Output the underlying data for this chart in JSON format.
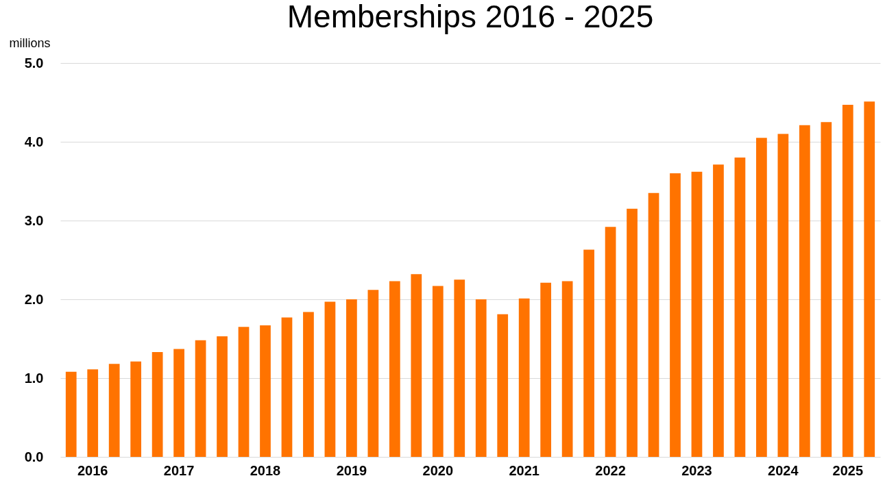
{
  "chart_data": {
    "type": "bar",
    "title": "Memberships 2016 - 2025",
    "ylabel": "millions",
    "categories": [
      null,
      "2016",
      null,
      null,
      null,
      "2017",
      null,
      null,
      null,
      "2018",
      null,
      null,
      null,
      "2019",
      null,
      null,
      null,
      "2020",
      null,
      null,
      null,
      "2021",
      null,
      null,
      null,
      "2022",
      null,
      null,
      null,
      "2023",
      null,
      null,
      null,
      "2024",
      null,
      null,
      "2025",
      null
    ],
    "values": [
      1.08,
      1.11,
      1.18,
      1.21,
      1.33,
      1.37,
      1.48,
      1.53,
      1.65,
      1.67,
      1.77,
      1.84,
      1.97,
      2.0,
      2.12,
      2.23,
      2.32,
      2.17,
      2.25,
      2.0,
      1.81,
      2.01,
      2.21,
      2.23,
      2.63,
      2.92,
      3.15,
      3.35,
      3.6,
      3.62,
      3.71,
      3.8,
      4.05,
      4.1,
      4.21,
      4.25,
      4.47,
      4.51
    ],
    "color": "#ff7300",
    "ylim": [
      0,
      5
    ],
    "yticks": [
      {
        "value": 0,
        "label": "0.0"
      },
      {
        "value": 1,
        "label": "1.0"
      },
      {
        "value": 2,
        "label": "2.0"
      },
      {
        "value": 3,
        "label": "3.0"
      },
      {
        "value": 4,
        "label": "4.0"
      },
      {
        "value": 5,
        "label": "5.0"
      }
    ],
    "grid": "y"
  }
}
